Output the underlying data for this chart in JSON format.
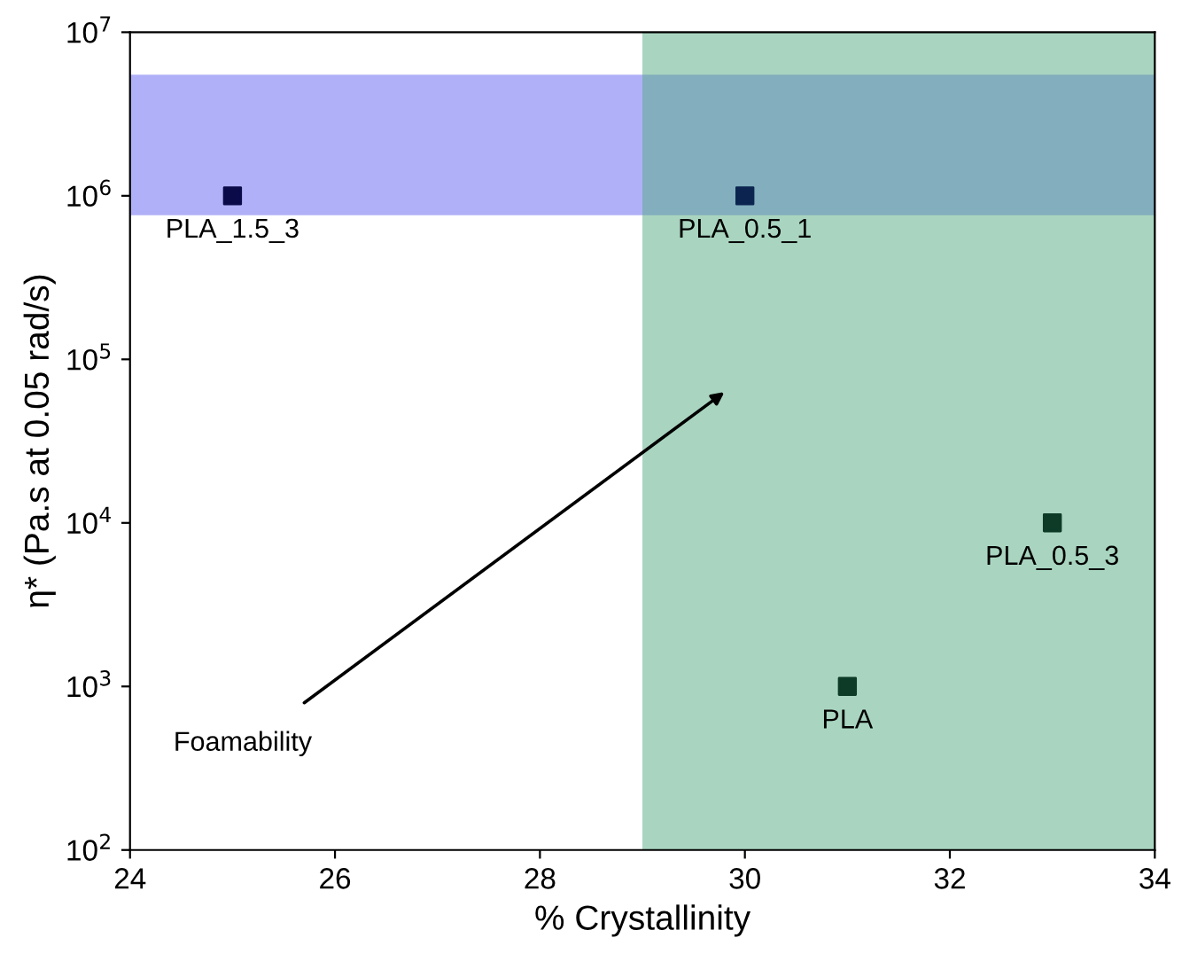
{
  "chart_data": {
    "type": "scatter",
    "xlabel": "% Crystallinity",
    "ylabel": "η* (Pa.s at 0.05 rad/s)",
    "series": [
      {
        "name": "PLA_1.5_3",
        "color": "#0b0b4a",
        "x": [
          25
        ],
        "values": [
          1000000
        ]
      },
      {
        "name": "PLA_0.5_1",
        "color": "#0b2450",
        "x": [
          30
        ],
        "values": [
          1000000
        ]
      },
      {
        "name": "PLA_0.5_3",
        "color": "#0d3b28",
        "x": [
          33
        ],
        "values": [
          10000
        ]
      },
      {
        "name": "PLA",
        "color": "#0d3b28",
        "x": [
          31
        ],
        "values": [
          1000
        ]
      }
    ],
    "marker": "square",
    "log": "y",
    "legend": false,
    "grid": false,
    "xlim": [
      24,
      34
    ],
    "xticks": [
      24,
      26,
      28,
      30,
      32,
      34
    ],
    "ylim": [
      100,
      10000000
    ],
    "yticks": [
      {
        "value": 100,
        "label": "10$^{2}$"
      },
      {
        "value": 1000,
        "label": "10$^{3}$"
      },
      {
        "value": 10000,
        "label": "10$^{4}$"
      },
      {
        "value": 100000,
        "label": "10$^{5}$"
      },
      {
        "value": 1000000,
        "label": "10$^{6}$"
      },
      {
        "value": 10000000,
        "label": "10$^{7}$"
      }
    ],
    "bands": [
      {
        "axis": "y",
        "from": 760000,
        "to": 5500000,
        "color": "#6161f1"
      },
      {
        "axis": "x",
        "from": 29,
        "to": 34,
        "color": "#53ab81"
      }
    ],
    "annotations": [
      "Foamability"
    ]
  }
}
